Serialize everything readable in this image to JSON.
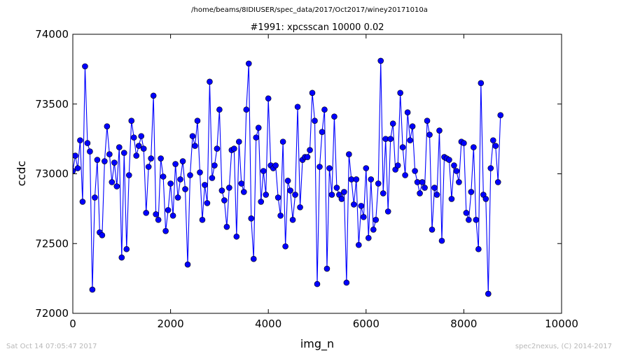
{
  "page": {
    "suptitle": "/home/beams/8IDIUSER/spec_data/2017/Oct2017/winey20171010a",
    "footer_left": "Sat Oct 14 07:05:47 2017",
    "footer_right": "spec2nexus, (C) 2014-2017"
  },
  "chart_data": {
    "type": "line",
    "title": "#1991: xpcsscan 10000 0.02",
    "xlabel": "img_n",
    "ylabel": "ccdc",
    "xlim": [
      0,
      10000
    ],
    "ylim": [
      72000,
      74000
    ],
    "xticks": [
      0,
      2000,
      4000,
      6000,
      8000,
      10000
    ],
    "yticks": [
      72000,
      72500,
      73000,
      73500,
      74000
    ],
    "xtick_labels": [
      "0",
      "2000",
      "4000",
      "6000",
      "8000",
      "10000"
    ],
    "ytick_labels": [
      "72000",
      "72500",
      "73000",
      "73500",
      "74000"
    ],
    "grid": false,
    "line_color": "#0000ff",
    "marker_color": "#0000ff",
    "marker": "circle",
    "step": 50,
    "y": [
      73020,
      73130,
      73040,
      73240,
      72800,
      73770,
      73220,
      73160,
      72170,
      72830,
      73100,
      72580,
      72560,
      73090,
      73340,
      73140,
      72940,
      73080,
      72910,
      73190,
      72400,
      73150,
      72460,
      72990,
      73380,
      73260,
      73130,
      73200,
      73270,
      73180,
      72720,
      73050,
      73110,
      73560,
      72710,
      72670,
      73110,
      72980,
      72590,
      72740,
      72930,
      72700,
      73070,
      72830,
      72960,
      73090,
      72890,
      72350,
      72990,
      73270,
      73200,
      73380,
      73010,
      72670,
      72920,
      72790,
      73660,
      72970,
      73060,
      73180,
      73460,
      72880,
      72810,
      72620,
      72900,
      73170,
      73180,
      72550,
      73230,
      72930,
      72870,
      73460,
      73790,
      72680,
      72390,
      73260,
      73330,
      72800,
      73020,
      72850,
      73540,
      73060,
      73040,
      73060,
      72830,
      72700,
      73230,
      72480,
      72950,
      72880,
      72670,
      72850,
      73480,
      72760,
      73100,
      73120,
      73120,
      73170,
      73580,
      73380,
      72210,
      73050,
      73300,
      73460,
      72320,
      73040,
      72850,
      73410,
      72900,
      72850,
      72820,
      72870,
      72220,
      73140,
      72960,
      72780,
      72960,
      72490,
      72770,
      72690,
      73040,
      72540,
      72960,
      72600,
      72670,
      72930,
      73810,
      72860,
      73250,
      72730,
      73250,
      73360,
      73030,
      73060,
      73580,
      73190,
      72990,
      73440,
      73240,
      73340,
      73020,
      72940,
      72860,
      72940,
      72900,
      73380,
      73280,
      72600,
      72900,
      72850,
      73310,
      72520,
      73120,
      73110,
      73100,
      72820,
      73060,
      73020,
      72940,
      73230,
      73220,
      72720,
      72670,
      72870,
      73190,
      72670,
      72460,
      73650,
      72850,
      72820,
      72140,
      73040,
      73240,
      73200,
      72940,
      73420
    ]
  }
}
